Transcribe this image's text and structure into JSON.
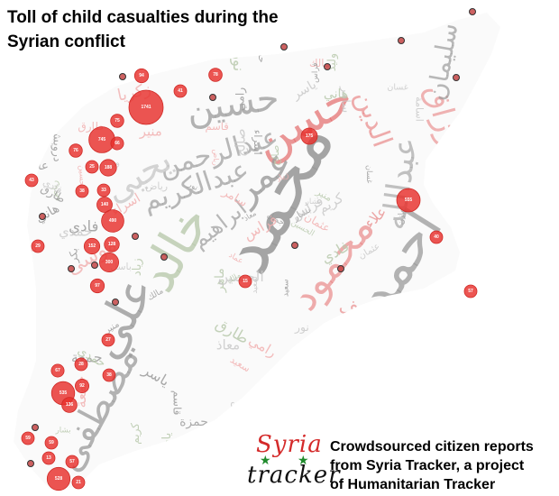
{
  "title": {
    "line1": "Toll of child casualties during the",
    "line2": "Syrian conflict"
  },
  "credit": {
    "line1": "Crowdsourced citizen reports",
    "line2": "from Syria Tracker, a project",
    "line3": "of Humanitarian Tracker"
  },
  "logo": {
    "top": "Syria",
    "bottom": "tracker",
    "stars": "star-icon"
  },
  "colors": {
    "marker": "#e8302c",
    "marker_outline": "#d02a26",
    "small_marker": "#c03a3a",
    "word_gray": "#9a9a9a",
    "word_light": "#c9c9c9",
    "word_red": "#e36a6a",
    "word_pink": "#f1b0b0",
    "word_green": "#b9c9ad"
  },
  "cloud_words": {
    "big": [
      "محمد",
      "احمد",
      "حسن",
      "عمر",
      "خالد",
      "علي",
      "مصطفى",
      "حسين",
      "عبدالرحمن",
      "يحيى",
      "عبدالله",
      "الدين",
      "عبدالرزاق",
      "عبدالكريم",
      "سليمان",
      "محمود",
      "ابراهيم",
      "يوسف",
      "حمزة",
      "موسى",
      "زكريا",
      "علاء"
    ],
    "small": [
      "سعيد",
      "عماد",
      "بشار",
      "وليد",
      "سامر",
      "جميل",
      "فادي",
      "ماهر",
      "رامي",
      "زياد",
      "نور",
      "كريم",
      "فراس",
      "طارق",
      "هاني",
      "باسل",
      "عادل",
      "منير",
      "ياسر",
      "اسامة",
      "درويش",
      "اسراء",
      "العبدالله",
      "الحسين",
      "قاسم",
      "جمعة",
      "صالح",
      "عثمان",
      "بكر",
      "مازن",
      "حمدي",
      "رياض",
      "غسان",
      "مالك",
      "معاذ"
    ]
  },
  "markers": [
    {
      "label": "94",
      "value": 94
    },
    {
      "label": "41",
      "value": 41
    },
    {
      "label": "78",
      "value": 78
    },
    {
      "label": "1741",
      "value": 1741
    },
    {
      "label": "75",
      "value": 75
    },
    {
      "label": "745",
      "value": 745
    },
    {
      "label": "66",
      "value": 66
    },
    {
      "label": "76",
      "value": 76
    },
    {
      "label": "25",
      "value": 25
    },
    {
      "label": "188",
      "value": 188
    },
    {
      "label": "43",
      "value": 43
    },
    {
      "label": "33",
      "value": 33
    },
    {
      "label": "38",
      "value": 38
    },
    {
      "label": "140",
      "value": 140
    },
    {
      "label": "490",
      "value": 490
    },
    {
      "label": "29",
      "value": 29
    },
    {
      "label": "152",
      "value": 152
    },
    {
      "label": "128",
      "value": 128
    },
    {
      "label": "300",
      "value": 300
    },
    {
      "label": "97",
      "value": 97
    },
    {
      "label": "175",
      "value": 175
    },
    {
      "label": "555",
      "value": 555
    },
    {
      "label": "40",
      "value": 40
    },
    {
      "label": "57",
      "value": 57
    },
    {
      "label": "38",
      "value": 38
    },
    {
      "label": "27",
      "value": 27
    },
    {
      "label": "15",
      "value": 15
    },
    {
      "label": "28",
      "value": 28
    },
    {
      "label": "67",
      "value": 67
    },
    {
      "label": "92",
      "value": 92
    },
    {
      "label": "535",
      "value": 535
    },
    {
      "label": "136",
      "value": 136
    },
    {
      "label": "59",
      "value": 59
    },
    {
      "label": "59",
      "value": 59
    },
    {
      "label": "13",
      "value": 13
    },
    {
      "label": "57",
      "value": 57
    },
    {
      "label": "528",
      "value": 528
    },
    {
      "label": "21",
      "value": 21
    },
    {
      "label": "",
      "value": 0
    },
    {
      "label": "",
      "value": 0
    },
    {
      "label": "",
      "value": 0
    },
    {
      "label": "",
      "value": 0
    },
    {
      "label": "",
      "value": 0
    },
    {
      "label": "",
      "value": 0
    },
    {
      "label": "",
      "value": 0
    },
    {
      "label": "",
      "value": 0
    },
    {
      "label": "",
      "value": 0
    },
    {
      "label": "",
      "value": 0
    },
    {
      "label": "",
      "value": 0
    },
    {
      "label": "",
      "value": 0
    },
    {
      "label": "",
      "value": 0
    },
    {
      "label": "",
      "value": 0
    },
    {
      "label": "",
      "value": 0
    },
    {
      "label": "",
      "value": 0
    },
    {
      "label": "",
      "value": 0
    }
  ]
}
